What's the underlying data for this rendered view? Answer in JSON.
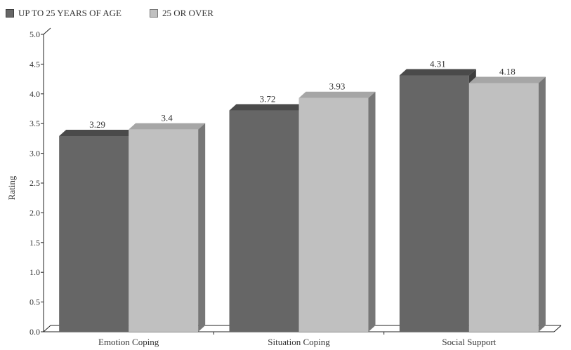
{
  "chart_data": {
    "type": "bar",
    "categories": [
      "Emotion Coping",
      "Situation Coping",
      "Social Support"
    ],
    "series": [
      {
        "name": "UP TO 25 YEARS OF AGE",
        "values": [
          3.29,
          3.72,
          4.31
        ],
        "color": "#666666",
        "top_color": "#4a4a4a",
        "side_color": "#3e3e3e"
      },
      {
        "name": "25 OR OVER",
        "values": [
          3.4,
          3.93,
          4.18
        ],
        "color": "#c0c0c0",
        "top_color": "#a6a6a6",
        "side_color": "#777777"
      }
    ],
    "value_labels": [
      [
        "3.29",
        "3.72",
        "4.31"
      ],
      [
        "3.4",
        "3.93",
        "4.18"
      ]
    ],
    "title": "",
    "xlabel": "",
    "ylabel": "Rating",
    "ylim": [
      0,
      5
    ],
    "yticks": [
      "0.0",
      "0.5",
      "1.0",
      "1.5",
      "2.0",
      "2.5",
      "3.0",
      "3.5",
      "4.0",
      "4.5",
      "5.0"
    ],
    "grid": false,
    "legend_position": "top-left",
    "style": "3d"
  }
}
